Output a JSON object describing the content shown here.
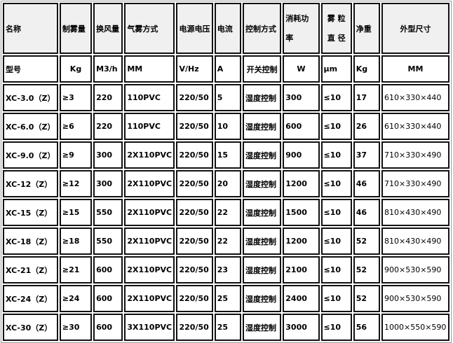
{
  "header": [
    "名称",
    "制雾量",
    "换风量",
    "气雾方式",
    "电源电压",
    "电流",
    "控制方式",
    "消耗功率",
    "雾粒直径",
    "净重",
    "外型尺寸"
  ],
  "header_split": {
    "power": [
      "消耗功",
      "率"
    ],
    "particle": [
      "雾 粒",
      "直 径"
    ]
  },
  "units": [
    "型号",
    "Kg",
    "M3/h",
    "MM",
    "V/Hz",
    "A",
    "开关控制",
    "W",
    "μm",
    "Kg",
    "MM"
  ],
  "rows": [
    [
      "XC-3.0（Z）",
      "≥3",
      "220",
      "110PVC",
      "220/50",
      "5",
      "湿度控制",
      "300",
      "≤10",
      "17",
      "610×330×440"
    ],
    [
      "XC-6.0（Z）",
      "≥6",
      "220",
      "110PVC",
      "220/50",
      "10",
      "湿度控制",
      "600",
      "≤10",
      "26",
      "610×330×440"
    ],
    [
      "XC-9.0（Z）",
      "≥9",
      "300",
      "2X110PVC",
      "220/50",
      "15",
      "湿度控制",
      "900",
      "≤10",
      "37",
      "710×330×490"
    ],
    [
      "XC-12（Z）",
      "≥12",
      "300",
      "2X110PVC",
      "220/50",
      "20",
      "湿度控制",
      "1200",
      "≤10",
      "46",
      "710×330×490"
    ],
    [
      "XC-15（Z）",
      "≥15",
      "550",
      "2X110PVC",
      "220/50",
      "22",
      "湿度控制",
      "1500",
      "≤10",
      "46",
      "810×430×490"
    ],
    [
      "XC-18（Z）",
      "≥18",
      "550",
      "2X110PVC",
      "220/50",
      "22",
      "湿度控制",
      "1200",
      "≤10",
      "52",
      "810×430×490"
    ],
    [
      "XC-21（Z）",
      "≥21",
      "600",
      "2X110PVC",
      "220/50",
      "23",
      "湿度控制",
      "2100",
      "≤10",
      "52",
      "900×530×590"
    ],
    [
      "XC-24（Z）",
      "≥24",
      "600",
      "2X110PVC",
      "220/50",
      "25",
      "湿度控制",
      "2400",
      "≤10",
      "52",
      "900×530×590"
    ],
    [
      "XC-30（Z）",
      "≥30",
      "600",
      "3X110PVC",
      "220/50",
      "25",
      "湿度控制",
      "3000",
      "≤10",
      "56",
      "1000×550×590"
    ]
  ]
}
